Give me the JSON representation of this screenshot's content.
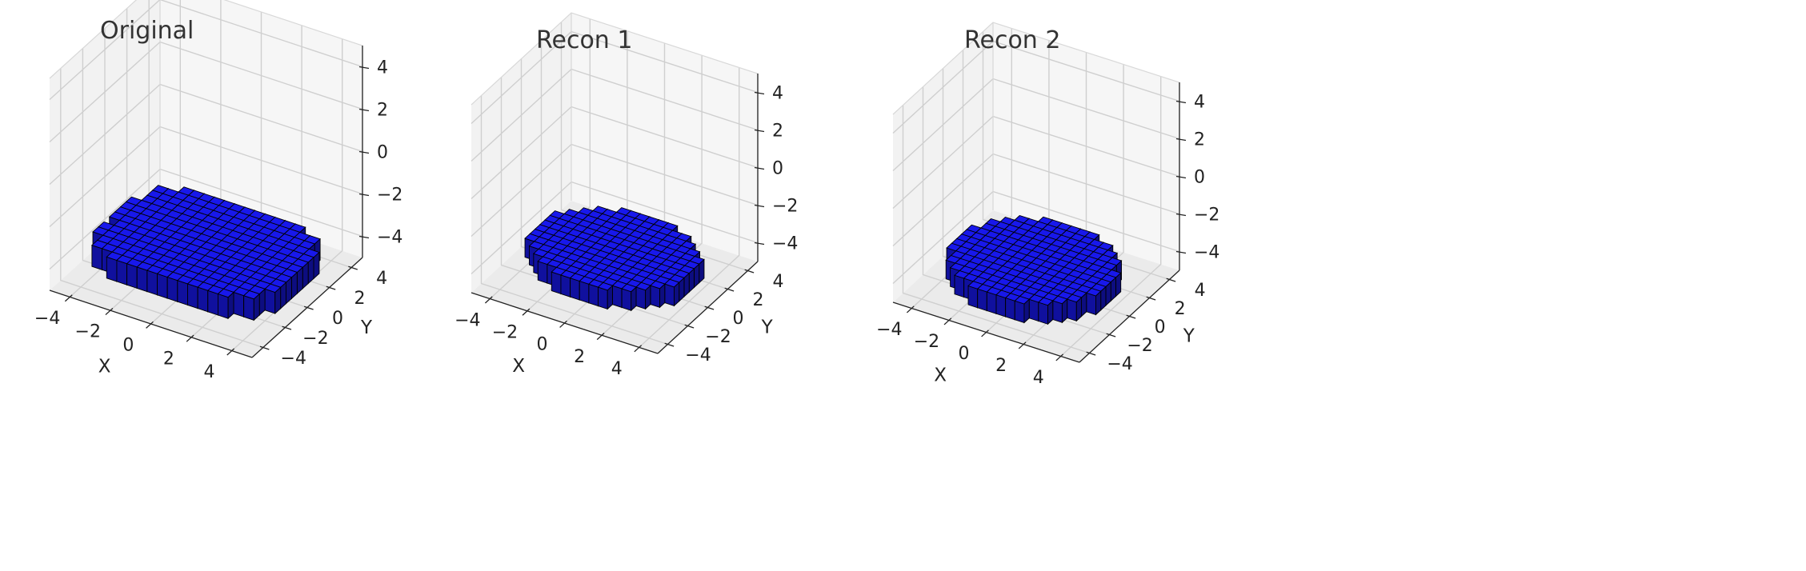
{
  "chart_data": [
    {
      "type": "voxel-3d",
      "title": "Original",
      "xlabel": "X",
      "ylabel": "Y",
      "zlabel": "",
      "xlim": [
        -5,
        5
      ],
      "ylim": [
        -5,
        5
      ],
      "zlim": [
        -5,
        5
      ],
      "xticks": [
        "−4",
        "−2",
        "0",
        "2",
        "4"
      ],
      "yticks": [
        "−4",
        "−2",
        "0",
        "2",
        "4"
      ],
      "zticks": [
        "−4",
        "−2",
        "0",
        "2",
        "4"
      ],
      "grid": true,
      "voxel_color": "#1a1aff",
      "shape": {
        "x_extent": [
          -4.5,
          4.5
        ],
        "y_extent": [
          -3.5,
          3.5
        ],
        "z_extent": [
          -4.5,
          -3.5
        ],
        "superness": 3.5,
        "bumpy": true
      }
    },
    {
      "type": "voxel-3d",
      "title": "Recon 1",
      "xlabel": "X",
      "ylabel": "Y",
      "zlabel": "",
      "xlim": [
        -5,
        5
      ],
      "ylim": [
        -5,
        5
      ],
      "zlim": [
        -5,
        5
      ],
      "xticks": [
        "−4",
        "−2",
        "0",
        "2",
        "4"
      ],
      "yticks": [
        "−4",
        "−2",
        "0",
        "2",
        "4"
      ],
      "zticks": [
        "−4",
        "−2",
        "0",
        "2",
        "4"
      ],
      "grid": true,
      "voxel_color": "#1a1aff",
      "shape": {
        "x_extent": [
          -4,
          4
        ],
        "y_extent": [
          -3.5,
          3.5
        ],
        "z_extent": [
          -4.5,
          -3.5
        ],
        "superness": 2.2,
        "bumpy": false
      }
    },
    {
      "type": "voxel-3d",
      "title": "Recon 2",
      "xlabel": "X",
      "ylabel": "Y",
      "zlabel": "",
      "xlim": [
        -5,
        5
      ],
      "ylim": [
        -5,
        5
      ],
      "zlim": [
        -5,
        5
      ],
      "xticks": [
        "−4",
        "−2",
        "0",
        "2",
        "4"
      ],
      "yticks": [
        "−4",
        "−2",
        "0",
        "2",
        "4"
      ],
      "zticks": [
        "−4",
        "−2",
        "0",
        "2",
        "4"
      ],
      "grid": true,
      "voxel_color": "#1a1aff",
      "shape": {
        "x_extent": [
          -4,
          4
        ],
        "y_extent": [
          -4,
          3.5
        ],
        "z_extent": [
          -4.5,
          -3.5
        ],
        "superness": 2.2,
        "bumpy": false
      }
    }
  ]
}
